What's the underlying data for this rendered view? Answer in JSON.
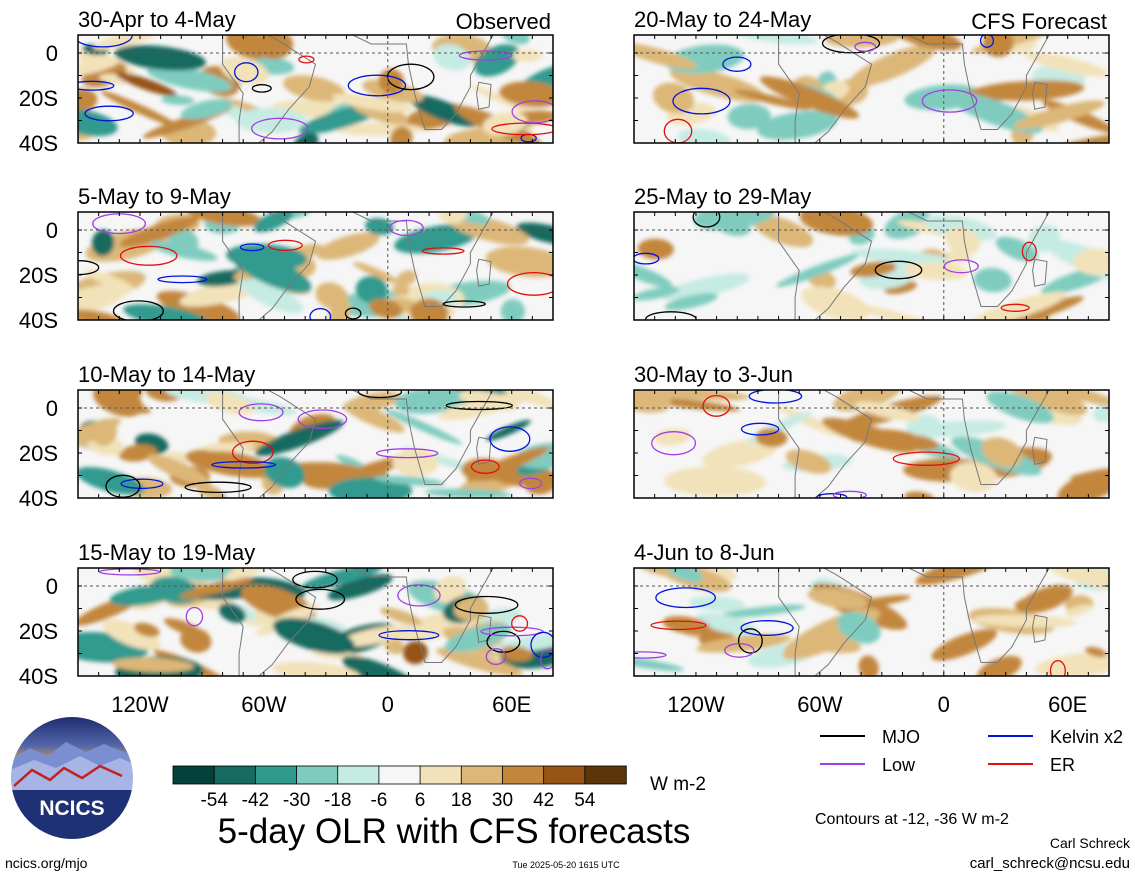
{
  "chart_data": {
    "type": "heatmap",
    "title": "5-day OLR with CFS forecasts",
    "observed_label": "Observed",
    "forecast_label": "CFS Forecast",
    "units": "W m-2",
    "contour_note": "Contours at -12, -36 W m-2",
    "x_ticks": [
      "120W",
      "60W",
      "0",
      "60E"
    ],
    "x_tick_values": [
      -120,
      -60,
      0,
      60
    ],
    "y_ticks": [
      "0",
      "20S",
      "40S"
    ],
    "y_tick_values": [
      0,
      -20,
      -40
    ],
    "xlim": [
      -150,
      80
    ],
    "ylim": [
      -40,
      8
    ],
    "colorbar": {
      "tick_labels": [
        "-54",
        "-42",
        "-30",
        "-18",
        "-6",
        "6",
        "18",
        "30",
        "42",
        "54"
      ],
      "colors": [
        "#03413a",
        "#156b60",
        "#319a8e",
        "#7fccbf",
        "#c6ebe3",
        "#f6f6f6",
        "#f2e2b9",
        "#dcb778",
        "#c2873d",
        "#965514",
        "#5c3508"
      ]
    },
    "legend": [
      {
        "label": "MJO",
        "color": "#000000"
      },
      {
        "label": "Kelvin x2",
        "color": "#0014dc"
      },
      {
        "label": "Low",
        "color": "#a040e0"
      },
      {
        "label": "ER",
        "color": "#e01010"
      }
    ],
    "panels_observed": [
      "30-Apr to 4-May",
      "5-May to 9-May",
      "10-May to 14-May",
      "15-May to 19-May"
    ],
    "panels_forecast": [
      "20-May to 24-May",
      "25-May to 29-May",
      "30-May to 3-Jun",
      "4-Jun to 8-Jun"
    ]
  },
  "footer": {
    "logo_text": "NCICS",
    "site": "ncics.org/mjo",
    "timestamp": "Tue 2025-05-20 1615 UTC",
    "author": "Carl Schreck",
    "email": "carl_schreck@ncsu.edu"
  }
}
